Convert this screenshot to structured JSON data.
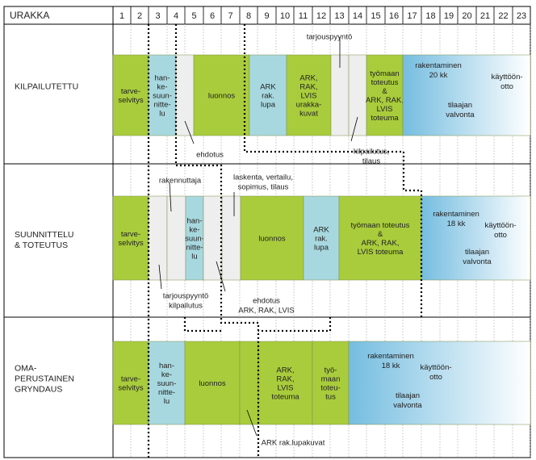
{
  "header": {
    "title": "URAKKA",
    "columns": [
      "1",
      "2",
      "3",
      "4",
      "5",
      "6",
      "7",
      "8",
      "9",
      "10",
      "11",
      "12",
      "13",
      "14",
      "15",
      "16",
      "17",
      "18",
      "19",
      "20",
      "21",
      "22",
      "23"
    ]
  },
  "colors": {
    "green": "#a9cc3c",
    "teal": "#a8d8df",
    "light": "#eeeeee",
    "construction_start": "#75bde0",
    "construction_end": "#ffffff",
    "line": "#000000"
  },
  "rows": [
    {
      "label": [
        "KILPAILUTETTU"
      ],
      "boxes": [
        {
          "key": "tarveselvitys",
          "lines": [
            "tarve-",
            "selvitys"
          ],
          "color": "green"
        },
        {
          "key": "hankesuunnittelu",
          "lines": [
            "han-",
            "ke-",
            "suun-",
            "nitte-",
            "lu"
          ],
          "color": "teal"
        },
        {
          "key": "ehdotus-slot",
          "lines": [],
          "color": "light"
        },
        {
          "key": "luonnos",
          "lines": [
            "luonnos"
          ],
          "color": "green"
        },
        {
          "key": "ark-rak-lupa",
          "lines": [
            "ARK",
            "rak.",
            "lupa"
          ],
          "color": "teal"
        },
        {
          "key": "urakkakuvat",
          "lines": [
            "ARK,",
            "RAK,",
            "LVIS",
            "urakka-",
            "kuvat"
          ],
          "color": "green"
        },
        {
          "key": "tarjouspyynto-slot",
          "lines": [],
          "color": "light"
        },
        {
          "key": "kilpailutus-slot",
          "lines": [],
          "color": "light"
        },
        {
          "key": "tyomaan-toteutus",
          "lines": [
            "työmaan",
            "toteutus",
            "&",
            "ARK, RAK,",
            "LVIS",
            "toteuma"
          ],
          "color": "green"
        },
        {
          "key": "rakentaminen",
          "lines": [
            "rakentaminen",
            "20 kk",
            "tilaajan",
            "valvonta",
            "käyttöön-",
            "otto"
          ],
          "color": "construction"
        }
      ],
      "annotations": [
        {
          "key": "tarjouspyynto",
          "text": "tarjouspyyntö"
        },
        {
          "key": "ehdotus",
          "text": "ehdotus"
        },
        {
          "key": "kilpailutus",
          "lines": [
            "kilpailutus,",
            "tilaus"
          ]
        }
      ]
    },
    {
      "label": [
        "SUUNNITTELU",
        "& TOTEUTUS"
      ],
      "boxes": [
        {
          "key": "tarveselvitys",
          "lines": [
            "tarve-",
            "selvitys"
          ],
          "color": "green"
        },
        {
          "key": "tarjouspyynto-slot",
          "lines": [],
          "color": "light"
        },
        {
          "key": "rakennuttaja-slot",
          "lines": [],
          "color": "light"
        },
        {
          "key": "hankesuunnittelu",
          "lines": [
            "han-",
            "ke-",
            "suun-",
            "nitte-",
            "lu"
          ],
          "color": "teal"
        },
        {
          "key": "ehdotus-slot",
          "lines": [],
          "color": "light"
        },
        {
          "key": "laskenta-slot",
          "lines": [],
          "color": "light"
        },
        {
          "key": "luonnos",
          "lines": [
            "luonnos"
          ],
          "color": "green"
        },
        {
          "key": "ark-rak-lupa",
          "lines": [
            "ARK",
            "rak.",
            "lupa"
          ],
          "color": "teal"
        },
        {
          "key": "tyomaan-toteutus",
          "lines": [
            "työmaan toteutus",
            "&",
            "ARK, RAK,",
            "LVIS toteuma"
          ],
          "color": "green"
        },
        {
          "key": "rakentaminen",
          "lines": [
            "rakentaminen",
            "18 kk",
            "tilaajan",
            "valvonta",
            "käyttöön-",
            "otto"
          ],
          "color": "construction"
        }
      ],
      "annotations": [
        {
          "key": "rakennuttaja",
          "text": "rakennuttaja"
        },
        {
          "key": "laskenta",
          "lines": [
            "laskenta, vertailu,",
            "sopimus, tilaus"
          ]
        },
        {
          "key": "tarjouspyynto",
          "lines": [
            "tarjouspyyntö",
            "kilpailutus"
          ]
        },
        {
          "key": "ehdotus",
          "lines": [
            "ehdotus",
            "ARK, RAK, LVIS"
          ]
        }
      ]
    },
    {
      "label": [
        "OMA-",
        "PERUSTAINEN",
        "GRYNDAUS"
      ],
      "boxes": [
        {
          "key": "tarveselvitys",
          "lines": [
            "tarve-",
            "selvitys"
          ],
          "color": "green"
        },
        {
          "key": "hankesuunnittelu",
          "lines": [
            "han-",
            "ke-",
            "suun-",
            "nitte-",
            "lu"
          ],
          "color": "teal"
        },
        {
          "key": "luonnos",
          "lines": [
            "luonnos"
          ],
          "color": "green"
        },
        {
          "key": "lupakuvat-slot",
          "lines": [],
          "color": "green"
        },
        {
          "key": "lvis-toteuma",
          "lines": [
            "ARK,",
            "RAK,",
            "LVIS",
            "toteuma"
          ],
          "color": "green"
        },
        {
          "key": "tyomaan-toteutus",
          "lines": [
            "työ-",
            "maan",
            "toteu-",
            "tus"
          ],
          "color": "green"
        },
        {
          "key": "rakentaminen",
          "lines": [
            "rakentaminen",
            "18 kk",
            "tilaajan",
            "valvonta",
            "käyttöön-",
            "otto"
          ],
          "color": "construction"
        }
      ],
      "annotations": [
        {
          "key": "lupakuvat",
          "text": "ARK rak.lupakuvat"
        }
      ]
    }
  ]
}
